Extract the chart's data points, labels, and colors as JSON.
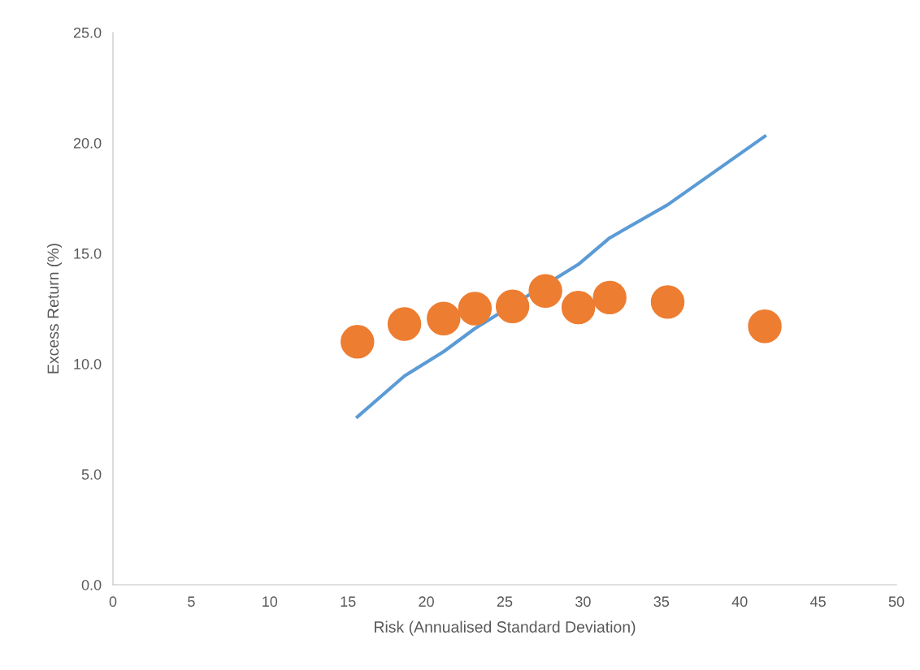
{
  "chart_data": {
    "type": "scatter",
    "xlabel": "Risk (Annualised Standard Deviation)",
    "ylabel": "Excess Return (%)",
    "series": [
      {
        "type": "line",
        "color": "#5b9bd5",
        "marker": "none",
        "x": [
          15.6,
          18.6,
          21.1,
          23.1,
          29.7,
          31.7,
          35.4,
          41.6
        ],
        "values": [
          7.6,
          9.45,
          10.55,
          11.6,
          14.5,
          15.7,
          17.2,
          20.3
        ]
      },
      {
        "color": "#ed7d31",
        "marker": "circle",
        "x": [
          15.6,
          18.6,
          21.1,
          23.1,
          25.5,
          27.6,
          29.7,
          31.7,
          35.4,
          41.6
        ],
        "values": [
          11.0,
          11.8,
          12.05,
          12.5,
          12.6,
          13.3,
          12.55,
          13.0,
          12.8,
          11.7
        ]
      }
    ],
    "xlim": [
      0,
      50
    ],
    "xticks": [
      0,
      5,
      10,
      15,
      20,
      25,
      30,
      35,
      40,
      45,
      50
    ],
    "ylim": [
      0,
      25
    ],
    "yticks": [
      {
        "value": 0,
        "label": "0.0"
      },
      {
        "value": 5,
        "label": "5.0"
      },
      {
        "value": 10,
        "label": "10.0"
      },
      {
        "value": 15,
        "label": "15.0"
      },
      {
        "value": 20,
        "label": "20.0"
      },
      {
        "value": 25,
        "label": "25.0"
      }
    ],
    "grid": false,
    "legend": false
  }
}
